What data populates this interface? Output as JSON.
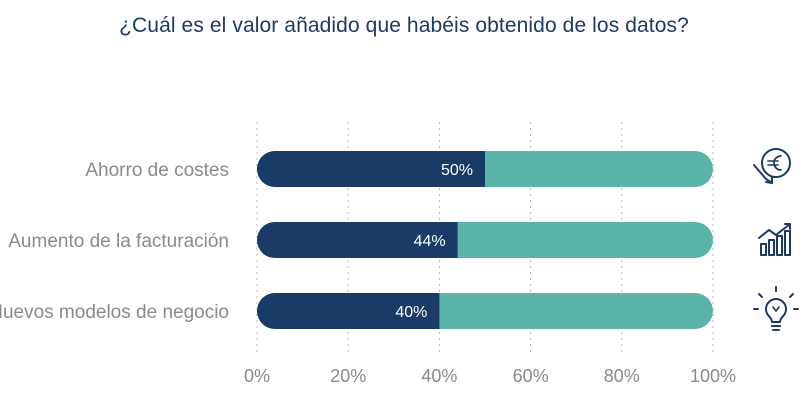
{
  "chart_data": {
    "type": "bar",
    "orientation": "horizontal",
    "stacked": true,
    "title": "¿Cuál es el valor añadido que habéis obtenido de los datos?",
    "categories": [
      "Ahorro de costes",
      "Aumento de la facturación",
      "Nuevos modelos de negocio"
    ],
    "values": [
      50,
      44,
      40
    ],
    "value_labels": [
      "50%",
      "44%",
      "40%"
    ],
    "remainder_values": [
      50,
      56,
      60
    ],
    "xlim": [
      0,
      100
    ],
    "x_ticks": [
      0,
      20,
      40,
      60,
      80,
      100
    ],
    "x_tick_labels": [
      "0%",
      "20%",
      "40%",
      "60%",
      "80%",
      "100%"
    ],
    "grid": "vertical-dotted",
    "icons": [
      "euro-down-icon",
      "growth-chart-icon",
      "lightbulb-icon"
    ],
    "colors": {
      "value": "#1a3a68",
      "remainder": "#5ab5a8",
      "title": "#1d3a66",
      "label": "#8a8a8a"
    }
  }
}
